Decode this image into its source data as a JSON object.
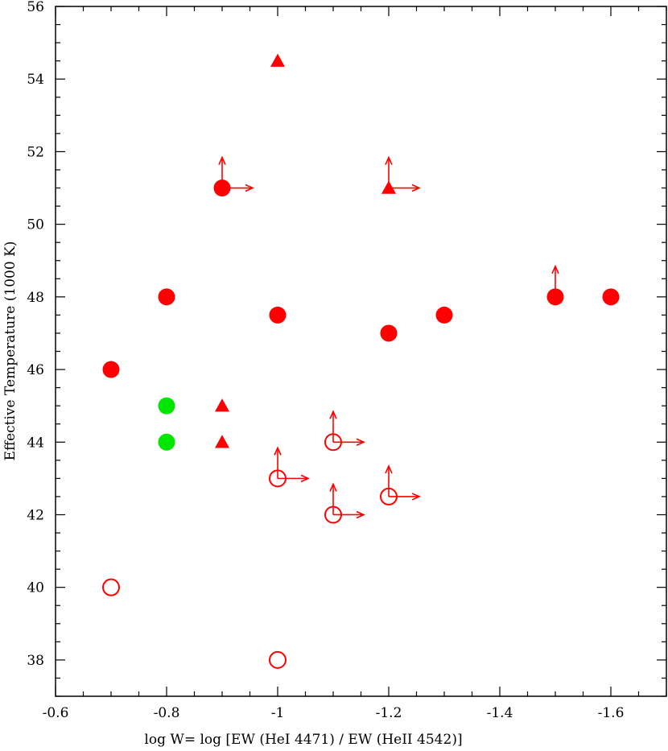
{
  "chart_data": {
    "type": "scatter",
    "title": "",
    "xlabel": "log W= log [EW (HeI 4471) / EW (HeII 4542)]",
    "ylabel": "Effective Temperature (1000 K)",
    "xlim": [
      -0.6,
      -1.7
    ],
    "ylim": [
      37,
      56
    ],
    "x_ticks": [
      -0.6,
      -0.8,
      -1,
      -1.2,
      -1.4,
      -1.6
    ],
    "x_tick_labels": [
      "-0.6",
      "-0.8",
      "-1",
      "-1.2",
      "-1.4",
      "-1.6"
    ],
    "y_ticks": [
      38,
      40,
      42,
      44,
      46,
      48,
      50,
      52,
      54,
      56
    ],
    "y_tick_labels": [
      "38",
      "40",
      "42",
      "44",
      "46",
      "48",
      "50",
      "52",
      "54",
      "56"
    ],
    "grid": false,
    "colors": {
      "red": "#ff0000",
      "green": "#00e600"
    },
    "points": [
      {
        "x": -0.7,
        "y": 46,
        "marker": "filled-circle",
        "color": "red",
        "up": false,
        "right": false
      },
      {
        "x": -0.8,
        "y": 48,
        "marker": "filled-circle",
        "color": "red",
        "up": false,
        "right": false
      },
      {
        "x": -0.9,
        "y": 51,
        "marker": "filled-circle",
        "color": "red",
        "up": true,
        "right": true
      },
      {
        "x": -1.0,
        "y": 47.5,
        "marker": "filled-circle",
        "color": "red",
        "up": false,
        "right": false
      },
      {
        "x": -1.2,
        "y": 47,
        "marker": "filled-circle",
        "color": "red",
        "up": false,
        "right": false
      },
      {
        "x": -1.3,
        "y": 47.5,
        "marker": "filled-circle",
        "color": "red",
        "up": false,
        "right": false
      },
      {
        "x": -1.5,
        "y": 48,
        "marker": "filled-circle",
        "color": "red",
        "up": true,
        "right": false
      },
      {
        "x": -1.6,
        "y": 48,
        "marker": "filled-circle",
        "color": "red",
        "up": false,
        "right": false
      },
      {
        "x": -0.8,
        "y": 45,
        "marker": "filled-circle",
        "color": "green",
        "up": false,
        "right": false
      },
      {
        "x": -0.8,
        "y": 44,
        "marker": "filled-circle",
        "color": "green",
        "up": false,
        "right": false
      },
      {
        "x": -1.0,
        "y": 54.5,
        "marker": "triangle",
        "color": "red",
        "up": false,
        "right": false
      },
      {
        "x": -1.2,
        "y": 51,
        "marker": "triangle",
        "color": "red",
        "up": true,
        "right": true
      },
      {
        "x": -0.9,
        "y": 45,
        "marker": "triangle",
        "color": "red",
        "up": false,
        "right": false
      },
      {
        "x": -0.9,
        "y": 44,
        "marker": "triangle",
        "color": "red",
        "up": false,
        "right": false
      },
      {
        "x": -1.1,
        "y": 44,
        "marker": "open-circle",
        "color": "red",
        "up": true,
        "right": true
      },
      {
        "x": -1.0,
        "y": 43,
        "marker": "open-circle",
        "color": "red",
        "up": true,
        "right": true
      },
      {
        "x": -1.2,
        "y": 42.5,
        "marker": "open-circle",
        "color": "red",
        "up": true,
        "right": true
      },
      {
        "x": -1.1,
        "y": 42,
        "marker": "open-circle",
        "color": "red",
        "up": true,
        "right": true
      },
      {
        "x": -0.7,
        "y": 40,
        "marker": "open-circle",
        "color": "red",
        "up": false,
        "right": false
      },
      {
        "x": -1.0,
        "y": 38,
        "marker": "open-circle",
        "color": "red",
        "up": false,
        "right": false
      }
    ]
  }
}
